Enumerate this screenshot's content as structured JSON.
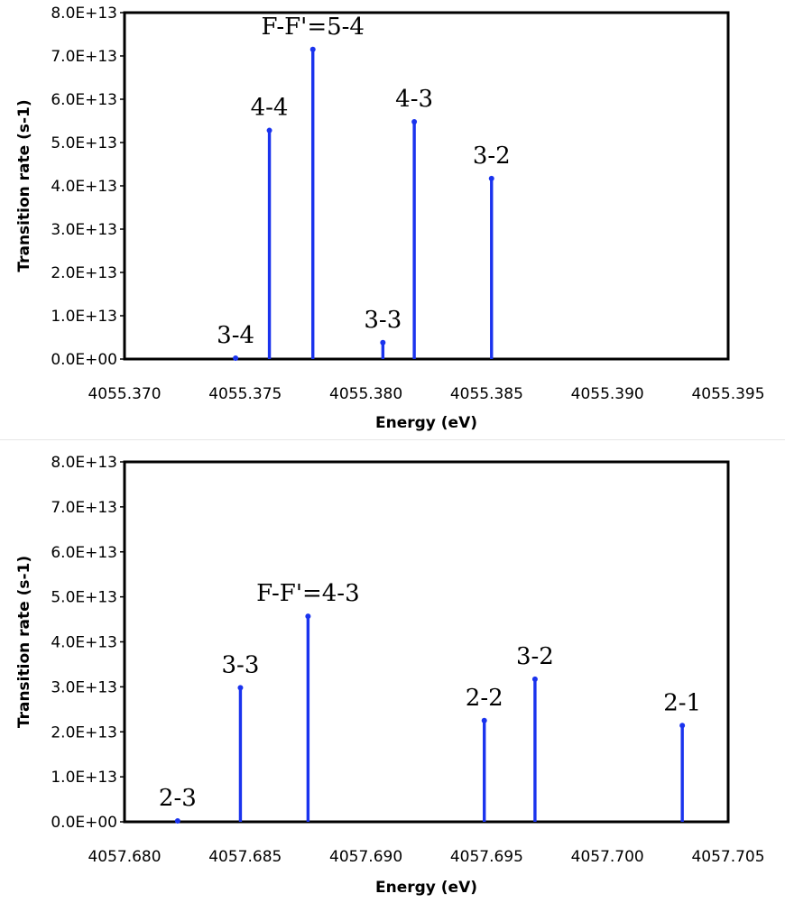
{
  "chart_data": [
    {
      "type": "bar",
      "title": "",
      "xlabel": "Energy (eV)",
      "ylabel": "Transition rate (s-1)",
      "xlim": [
        4055.37,
        4055.395
      ],
      "ylim": [
        0,
        80000000000000.0
      ],
      "x_ticks": [
        "4055.370",
        "4055.375",
        "4055.380",
        "4055.385",
        "4055.390",
        "4055.395"
      ],
      "x_tick_values": [
        4055.37,
        4055.375,
        4055.38,
        4055.385,
        4055.39,
        4055.395
      ],
      "y_ticks": [
        "0.0E+00",
        "1.0E+13",
        "2.0E+13",
        "3.0E+13",
        "4.0E+13",
        "5.0E+13",
        "6.0E+13",
        "7.0E+13",
        "8.0E+13"
      ],
      "y_tick_values": [
        0,
        10000000000000.0,
        20000000000000.0,
        30000000000000.0,
        40000000000000.0,
        50000000000000.0,
        60000000000000.0,
        70000000000000.0,
        80000000000000.0
      ],
      "grid": false,
      "line_color": "#1a33ee",
      "points": [
        {
          "x": 4055.3746,
          "y": 200000000000.0,
          "label": "3-4"
        },
        {
          "x": 4055.376,
          "y": 52800000000000.0,
          "label": "4-4"
        },
        {
          "x": 4055.3778,
          "y": 71500000000000.0,
          "label": "F-F'=5-4"
        },
        {
          "x": 4055.3807,
          "y": 3800000000000.0,
          "label": "3-3"
        },
        {
          "x": 4055.382,
          "y": 54800000000000.0,
          "label": "4-3"
        },
        {
          "x": 4055.3852,
          "y": 41700000000000.0,
          "label": "3-2"
        }
      ]
    },
    {
      "type": "bar",
      "title": "",
      "xlabel": "Energy (eV)",
      "ylabel": "Transition rate (s-1)",
      "xlim": [
        4057.68,
        4057.705
      ],
      "ylim": [
        0,
        80000000000000.0
      ],
      "x_ticks": [
        "4057.680",
        "4057.685",
        "4057.690",
        "4057.695",
        "4057.700",
        "4057.705"
      ],
      "x_tick_values": [
        4057.68,
        4057.685,
        4057.69,
        4057.695,
        4057.7,
        4057.705
      ],
      "y_ticks": [
        "0.0E+00",
        "1.0E+13",
        "2.0E+13",
        "3.0E+13",
        "4.0E+13",
        "5.0E+13",
        "6.0E+13",
        "7.0E+13",
        "8.0E+13"
      ],
      "y_tick_values": [
        0,
        10000000000000.0,
        20000000000000.0,
        30000000000000.0,
        40000000000000.0,
        50000000000000.0,
        60000000000000.0,
        70000000000000.0,
        80000000000000.0
      ],
      "grid": false,
      "line_color": "#1a33ee",
      "points": [
        {
          "x": 4057.6822,
          "y": 200000000000.0,
          "label": "2-3"
        },
        {
          "x": 4057.6848,
          "y": 29800000000000.0,
          "label": "3-3"
        },
        {
          "x": 4057.6876,
          "y": 45700000000000.0,
          "label": "F-F'=4-3"
        },
        {
          "x": 4057.6949,
          "y": 22500000000000.0,
          "label": "2-2"
        },
        {
          "x": 4057.697,
          "y": 31700000000000.0,
          "label": "3-2"
        },
        {
          "x": 4057.7031,
          "y": 21400000000000.0,
          "label": "2-1"
        }
      ]
    }
  ]
}
